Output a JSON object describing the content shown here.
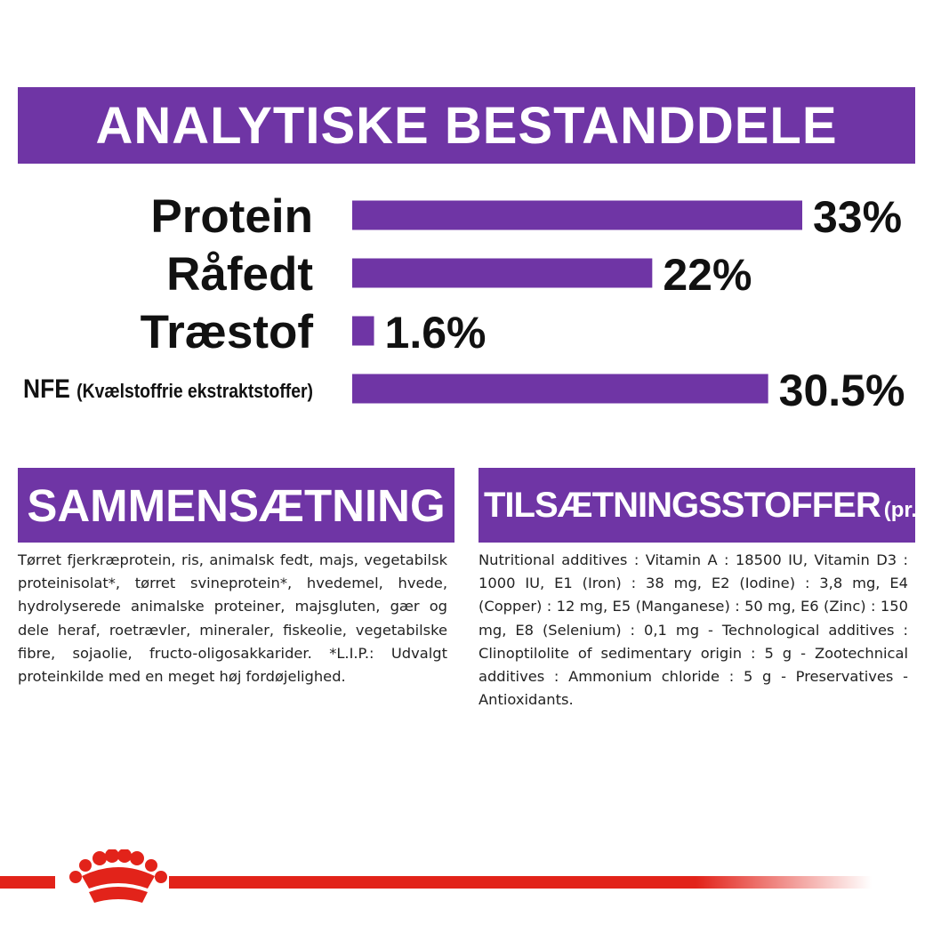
{
  "title": "ANALYTISKE BESTANDDELE",
  "chart_data": {
    "type": "bar",
    "orientation": "horizontal",
    "categories": [
      "Protein",
      "Råfedt",
      "Træstof",
      "NFE"
    ],
    "category_notes": [
      "",
      "",
      "",
      "(Kvælstoffrie ekstraktstoffer)"
    ],
    "values": [
      33,
      22,
      1.6,
      30.5
    ],
    "value_labels": [
      "33%",
      "22%",
      "1.6%",
      "30.5%"
    ],
    "bar_color": "#6f35a5",
    "xlim": [
      0,
      33
    ],
    "grid": false
  },
  "composition": {
    "heading": "SAMMENSÆTNING",
    "text": "Tørret fjerkræprotein, ris, animalsk fedt, majs, vegetabilsk proteinisolat*, tørret svineprotein*, hvedemel, hvede, hydrolyserede animalske proteiner, majsgluten, gær og dele heraf, roetrævler, mineraler, fiskeolie, vegetabilske fibre, sojaolie, fructo-oligosakkarider. *L.I.P.: Udvalgt proteinkilde med en meget høj fordøjelighed."
  },
  "additives": {
    "heading": "TILSÆTNINGSSTOFFER",
    "heading_suffix": "(pr. kg)",
    "text": "Nutritional additives : Vitamin A : 18500 IU, Vitamin D3 : 1000 IU, E1 (Iron) : 38 mg, E2 (Iodine) : 3,8 mg, E4 (Copper) : 12 mg, E5 (Manganese) : 50 mg, E6 (Zinc) : 150 mg, E8 (Selenium) : 0,1 mg - Technological additives : Clinoptilolite of sedimentary origin : 5 g - Zootechnical additives : Ammonium chloride : 5 g - Preservatives - Antioxidants."
  },
  "footer": {
    "logo_icon": "crown-icon",
    "stripe_color": "#e2231a"
  },
  "colors": {
    "brand_purple": "#6f35a5",
    "brand_red": "#e2231a"
  }
}
